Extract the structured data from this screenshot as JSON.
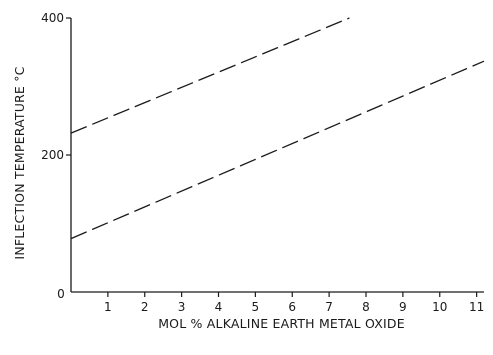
{
  "chart_data": {
    "type": "line",
    "xlabel": "MOL % ALKALINE EARTH METAL OXIDE",
    "ylabel": "INFLECTION TEMPERATURE °C",
    "xlim": [
      0,
      11.2
    ],
    "ylim": [
      0,
      400
    ],
    "x_ticks": [
      1,
      2,
      3,
      4,
      5,
      6,
      7,
      8,
      9,
      10,
      11
    ],
    "y_ticks": [
      0,
      200,
      400
    ],
    "origin_label": "0",
    "grid": false,
    "legend": "none",
    "line_style": "dashed",
    "series": [
      {
        "x": [
          0,
          7.55
        ],
        "y": [
          232,
          400
        ]
      },
      {
        "x": [
          0,
          11.2
        ],
        "y": [
          78,
          337
        ]
      }
    ]
  }
}
